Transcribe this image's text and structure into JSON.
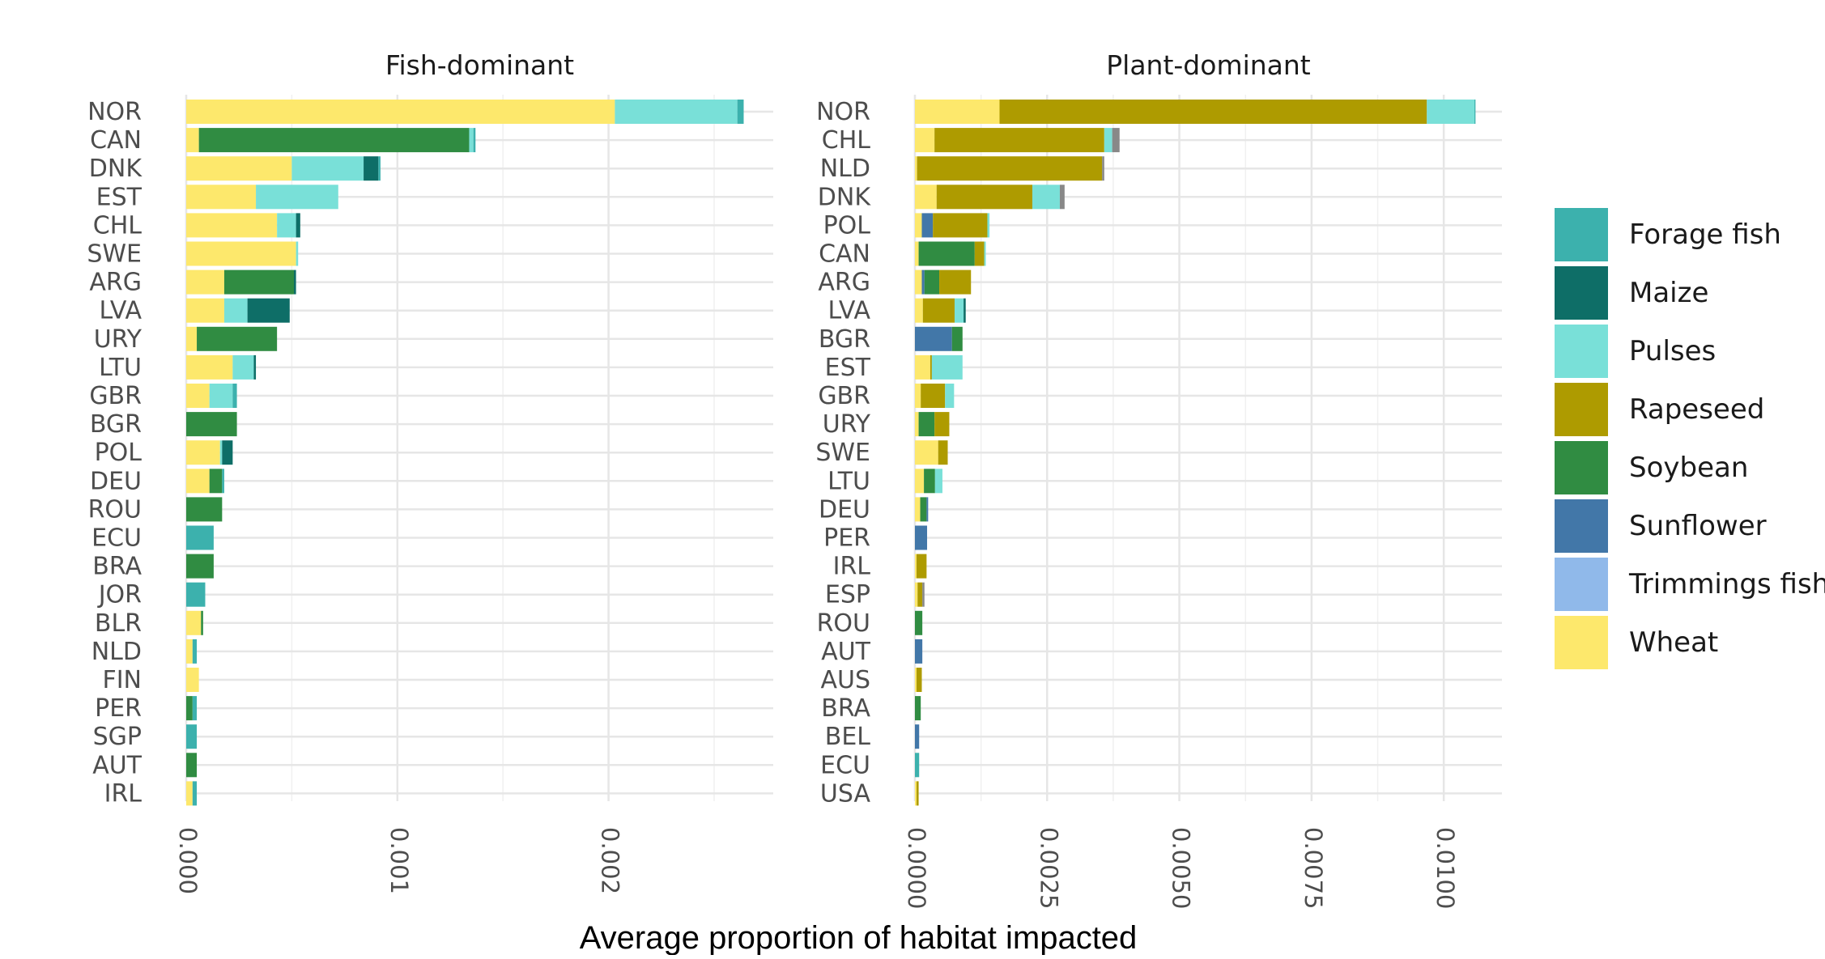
{
  "chart_data": {
    "type": "bar",
    "orientation": "horizontal",
    "stacked": true,
    "xlabel": "Average proportion of habitat impacted",
    "grid": true,
    "legend": {
      "placement": "right",
      "entries": [
        {
          "name": "Forage fish",
          "color": "#3cb1ad"
        },
        {
          "name": "Maize",
          "color": "#0e6e67"
        },
        {
          "name": "Pulses",
          "color": "#79e0d8"
        },
        {
          "name": "Rapeseed",
          "color": "#ae9b00"
        },
        {
          "name": "Soybean",
          "color": "#308c42"
        },
        {
          "name": "Sunflower",
          "color": "#4277a8"
        },
        {
          "name": "Trimmings fish",
          "color": "#90b9ea"
        },
        {
          "name": "Wheat",
          "color": "#fde86c"
        }
      ]
    },
    "other_color": "#888888",
    "panels": [
      {
        "title": "Fish-dominant",
        "xlim": [
          0,
          0.00278
        ],
        "ticks": [
          0,
          0.001,
          0.002
        ],
        "tick_labels": [
          "0.000",
          "0.001",
          "0.002"
        ],
        "rows": [
          {
            "country": "NOR",
            "segments": [
              {
                "c": "Wheat",
                "v": 0.00203
              },
              {
                "c": "Pulses",
                "v": 0.00058
              },
              {
                "c": "Forage fish",
                "v": 3e-05
              }
            ]
          },
          {
            "country": "CAN",
            "segments": [
              {
                "c": "Wheat",
                "v": 6e-05
              },
              {
                "c": "Soybean",
                "v": 0.00128
              },
              {
                "c": "Pulses",
                "v": 2e-05
              },
              {
                "c": "Forage fish",
                "v": 1e-05
              }
            ]
          },
          {
            "country": "DNK",
            "segments": [
              {
                "c": "Wheat",
                "v": 0.0005
              },
              {
                "c": "Pulses",
                "v": 0.00034
              },
              {
                "c": "Maize",
                "v": 7e-05
              },
              {
                "c": "Forage fish",
                "v": 1e-05
              }
            ]
          },
          {
            "country": "EST",
            "segments": [
              {
                "c": "Wheat",
                "v": 0.00033
              },
              {
                "c": "Pulses",
                "v": 0.00039
              }
            ]
          },
          {
            "country": "CHL",
            "segments": [
              {
                "c": "Wheat",
                "v": 0.00043
              },
              {
                "c": "Pulses",
                "v": 9e-05
              },
              {
                "c": "Maize",
                "v": 2e-05
              }
            ]
          },
          {
            "country": "SWE",
            "segments": [
              {
                "c": "Wheat",
                "v": 0.00052
              },
              {
                "c": "Pulses",
                "v": 1e-05
              }
            ]
          },
          {
            "country": "ARG",
            "segments": [
              {
                "c": "Wheat",
                "v": 0.00018
              },
              {
                "c": "Soybean",
                "v": 0.00033
              },
              {
                "c": "Maize",
                "v": 1e-05
              }
            ]
          },
          {
            "country": "LVA",
            "segments": [
              {
                "c": "Wheat",
                "v": 0.00018
              },
              {
                "c": "Pulses",
                "v": 0.00011
              },
              {
                "c": "Maize",
                "v": 0.0002
              }
            ]
          },
          {
            "country": "URY",
            "segments": [
              {
                "c": "Wheat",
                "v": 5e-05
              },
              {
                "c": "Soybean",
                "v": 0.00038
              }
            ]
          },
          {
            "country": "LTU",
            "segments": [
              {
                "c": "Wheat",
                "v": 0.00022
              },
              {
                "c": "Pulses",
                "v": 0.0001
              },
              {
                "c": "Maize",
                "v": 1e-05
              }
            ]
          },
          {
            "country": "GBR",
            "segments": [
              {
                "c": "Wheat",
                "v": 0.00011
              },
              {
                "c": "Pulses",
                "v": 0.00011
              },
              {
                "c": "Forage fish",
                "v": 2e-05
              }
            ]
          },
          {
            "country": "BGR",
            "segments": [
              {
                "c": "Soybean",
                "v": 0.00024
              }
            ]
          },
          {
            "country": "POL",
            "segments": [
              {
                "c": "Wheat",
                "v": 0.00016
              },
              {
                "c": "Pulses",
                "v": 1e-05
              },
              {
                "c": "Maize",
                "v": 5e-05
              }
            ]
          },
          {
            "country": "DEU",
            "segments": [
              {
                "c": "Wheat",
                "v": 0.00011
              },
              {
                "c": "Soybean",
                "v": 6e-05
              },
              {
                "c": "Forage fish",
                "v": 1e-05
              }
            ]
          },
          {
            "country": "ROU",
            "segments": [
              {
                "c": "Soybean",
                "v": 0.00017
              }
            ]
          },
          {
            "country": "ECU",
            "segments": [
              {
                "c": "Forage fish",
                "v": 0.00013
              }
            ]
          },
          {
            "country": "BRA",
            "segments": [
              {
                "c": "Soybean",
                "v": 0.00013
              }
            ]
          },
          {
            "country": "JOR",
            "segments": [
              {
                "c": "Forage fish",
                "v": 9e-05
              }
            ]
          },
          {
            "country": "BLR",
            "segments": [
              {
                "c": "Wheat",
                "v": 7e-05
              },
              {
                "c": "Soybean",
                "v": 1e-05
              }
            ]
          },
          {
            "country": "NLD",
            "segments": [
              {
                "c": "Wheat",
                "v": 3e-05
              },
              {
                "c": "Forage fish",
                "v": 2e-05
              }
            ]
          },
          {
            "country": "FIN",
            "segments": [
              {
                "c": "Wheat",
                "v": 6e-05
              }
            ]
          },
          {
            "country": "PER",
            "segments": [
              {
                "c": "Soybean",
                "v": 3e-05
              },
              {
                "c": "Forage fish",
                "v": 2e-05
              }
            ]
          },
          {
            "country": "SGP",
            "segments": [
              {
                "c": "Forage fish",
                "v": 5e-05
              }
            ]
          },
          {
            "country": "AUT",
            "segments": [
              {
                "c": "Soybean",
                "v": 5e-05
              }
            ]
          },
          {
            "country": "IRL",
            "segments": [
              {
                "c": "Wheat",
                "v": 3e-05
              },
              {
                "c": "Forage fish",
                "v": 2e-05
              }
            ]
          }
        ]
      },
      {
        "title": "Plant-dominant",
        "xlim": [
          0,
          0.0111
        ],
        "ticks": [
          0,
          0.0025,
          0.005,
          0.0075,
          0.01
        ],
        "tick_labels": [
          "0.0000",
          "0.0025",
          "0.0050",
          "0.0075",
          "0.0100"
        ],
        "rows": [
          {
            "country": "NOR",
            "segments": [
              {
                "c": "Wheat",
                "v": 0.0016
              },
              {
                "c": "Rapeseed",
                "v": 0.00808
              },
              {
                "c": "Pulses",
                "v": 0.0009
              },
              {
                "c": "Forage fish",
                "v": 2e-05
              }
            ]
          },
          {
            "country": "CHL",
            "segments": [
              {
                "c": "Wheat",
                "v": 0.00037
              },
              {
                "c": "Rapeseed",
                "v": 0.00321
              },
              {
                "c": "Pulses",
                "v": 0.00015
              },
              {
                "c": "Other",
                "v": 0.00014
              }
            ]
          },
          {
            "country": "NLD",
            "segments": [
              {
                "c": "Wheat",
                "v": 4e-05
              },
              {
                "c": "Rapeseed",
                "v": 0.0035
              },
              {
                "c": "Other",
                "v": 4e-05
              }
            ]
          },
          {
            "country": "DNK",
            "segments": [
              {
                "c": "Wheat",
                "v": 0.00041
              },
              {
                "c": "Rapeseed",
                "v": 0.00181
              },
              {
                "c": "Pulses",
                "v": 0.00052
              },
              {
                "c": "Other",
                "v": 9e-05
              }
            ]
          },
          {
            "country": "POL",
            "segments": [
              {
                "c": "Wheat",
                "v": 0.00013
              },
              {
                "c": "Sunflower",
                "v": 0.00021
              },
              {
                "c": "Rapeseed",
                "v": 0.00103
              },
              {
                "c": "Pulses",
                "v": 4e-05
              }
            ]
          },
          {
            "country": "CAN",
            "segments": [
              {
                "c": "Wheat",
                "v": 7e-05
              },
              {
                "c": "Soybean",
                "v": 0.00106
              },
              {
                "c": "Rapeseed",
                "v": 0.00018
              },
              {
                "c": "Pulses",
                "v": 3e-05
              }
            ]
          },
          {
            "country": "ARG",
            "segments": [
              {
                "c": "Wheat",
                "v": 0.00013
              },
              {
                "c": "Sunflower",
                "v": 5e-05
              },
              {
                "c": "Soybean",
                "v": 0.00028
              },
              {
                "c": "Rapeseed",
                "v": 0.0006
              }
            ]
          },
          {
            "country": "LVA",
            "segments": [
              {
                "c": "Wheat",
                "v": 0.00015
              },
              {
                "c": "Rapeseed",
                "v": 0.0006
              },
              {
                "c": "Pulses",
                "v": 0.00017
              },
              {
                "c": "Maize",
                "v": 4e-05
              }
            ]
          },
          {
            "country": "BGR",
            "segments": [
              {
                "c": "Sunflower",
                "v": 0.0007
              },
              {
                "c": "Soybean",
                "v": 0.0002
              }
            ]
          },
          {
            "country": "EST",
            "segments": [
              {
                "c": "Wheat",
                "v": 0.00029
              },
              {
                "c": "Rapeseed",
                "v": 3e-05
              },
              {
                "c": "Pulses",
                "v": 0.00058
              }
            ]
          },
          {
            "country": "GBR",
            "segments": [
              {
                "c": "Wheat",
                "v": 0.00011
              },
              {
                "c": "Rapeseed",
                "v": 0.00046
              },
              {
                "c": "Pulses",
                "v": 0.00017
              }
            ]
          },
          {
            "country": "URY",
            "segments": [
              {
                "c": "Wheat",
                "v": 7e-05
              },
              {
                "c": "Soybean",
                "v": 0.0003
              },
              {
                "c": "Rapeseed",
                "v": 0.00028
              }
            ]
          },
          {
            "country": "SWE",
            "segments": [
              {
                "c": "Wheat",
                "v": 0.00044
              },
              {
                "c": "Rapeseed",
                "v": 0.00018
              }
            ]
          },
          {
            "country": "LTU",
            "segments": [
              {
                "c": "Wheat",
                "v": 0.00017
              },
              {
                "c": "Soybean",
                "v": 0.00021
              },
              {
                "c": "Pulses",
                "v": 0.00014
              }
            ]
          },
          {
            "country": "DEU",
            "segments": [
              {
                "c": "Wheat",
                "v": 0.0001
              },
              {
                "c": "Soybean",
                "v": 0.00012
              },
              {
                "c": "Sunflower",
                "v": 3e-05
              }
            ]
          },
          {
            "country": "PER",
            "segments": [
              {
                "c": "Sunflower",
                "v": 0.00023
              }
            ]
          },
          {
            "country": "IRL",
            "segments": [
              {
                "c": "Wheat",
                "v": 3e-05
              },
              {
                "c": "Rapeseed",
                "v": 0.00019
              }
            ]
          },
          {
            "country": "ESP",
            "segments": [
              {
                "c": "Wheat",
                "v": 5e-05
              },
              {
                "c": "Rapeseed",
                "v": 9e-05
              },
              {
                "c": "Other",
                "v": 4e-05
              }
            ]
          },
          {
            "country": "ROU",
            "segments": [
              {
                "c": "Soybean",
                "v": 0.00014
              }
            ]
          },
          {
            "country": "AUT",
            "segments": [
              {
                "c": "Sunflower",
                "v": 0.00014
              }
            ]
          },
          {
            "country": "AUS",
            "segments": [
              {
                "c": "Wheat",
                "v": 3e-05
              },
              {
                "c": "Rapeseed",
                "v": 0.0001
              }
            ]
          },
          {
            "country": "BRA",
            "segments": [
              {
                "c": "Soybean",
                "v": 0.00011
              }
            ]
          },
          {
            "country": "BEL",
            "segments": [
              {
                "c": "Sunflower",
                "v": 8e-05
              }
            ]
          },
          {
            "country": "ECU",
            "segments": [
              {
                "c": "Forage fish",
                "v": 8e-05
              }
            ]
          },
          {
            "country": "USA",
            "segments": [
              {
                "c": "Wheat",
                "v": 3e-05
              },
              {
                "c": "Rapeseed",
                "v": 4e-05
              }
            ]
          }
        ]
      }
    ]
  }
}
